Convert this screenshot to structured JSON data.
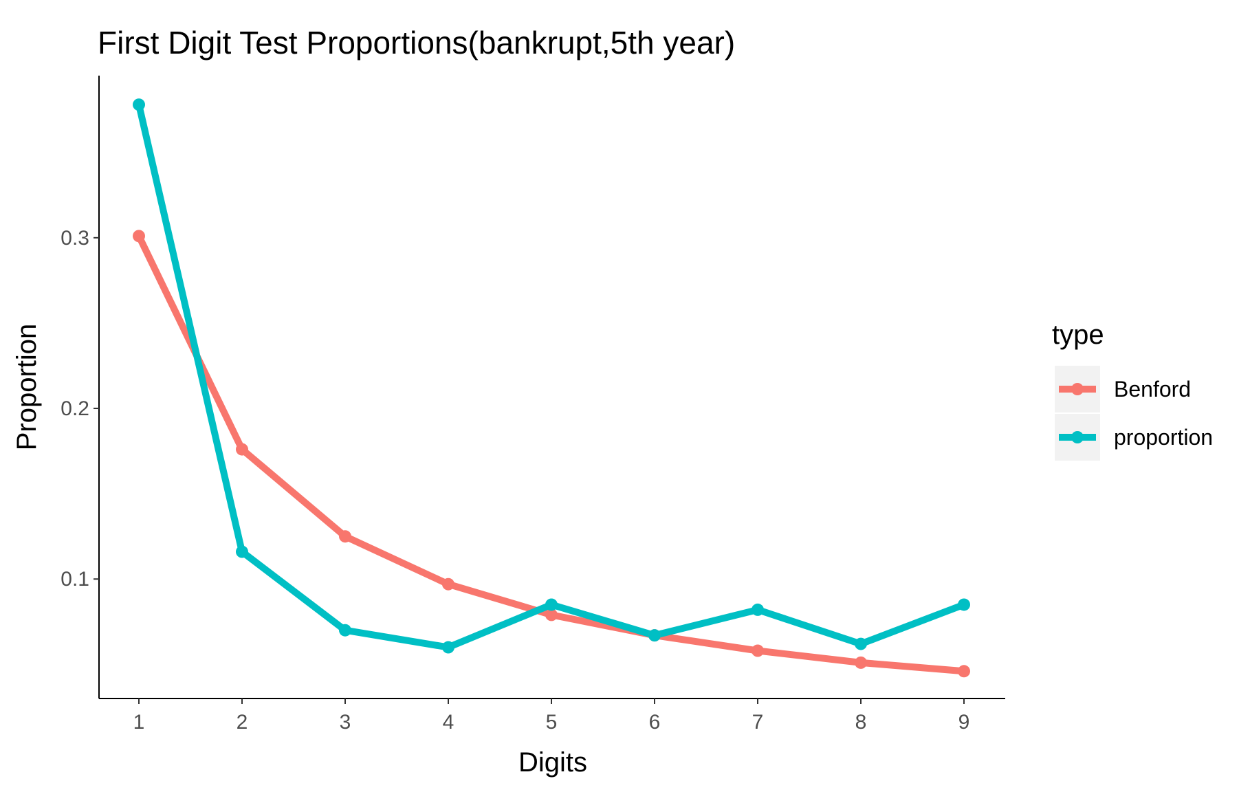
{
  "chart_data": {
    "type": "line",
    "title": "First Digit Test Proportions(bankrupt,5th year)",
    "xlabel": "Digits",
    "ylabel": "Proportion",
    "categories": [
      "1",
      "2",
      "3",
      "4",
      "5",
      "6",
      "7",
      "8",
      "9"
    ],
    "y_ticks": [
      "0.1",
      "0.2",
      "0.3"
    ],
    "ylim": [
      0.03,
      0.395
    ],
    "grid": false,
    "legend": {
      "title": "type",
      "position": "right"
    },
    "series": [
      {
        "name": "Benford",
        "color": "#F8766D",
        "values": [
          0.301,
          0.176,
          0.125,
          0.097,
          0.079,
          0.067,
          0.058,
          0.051,
          0.046
        ]
      },
      {
        "name": "proportion",
        "color": "#00BFC4",
        "values": [
          0.378,
          0.116,
          0.07,
          0.06,
          0.085,
          0.067,
          0.082,
          0.062,
          0.085
        ]
      }
    ]
  }
}
